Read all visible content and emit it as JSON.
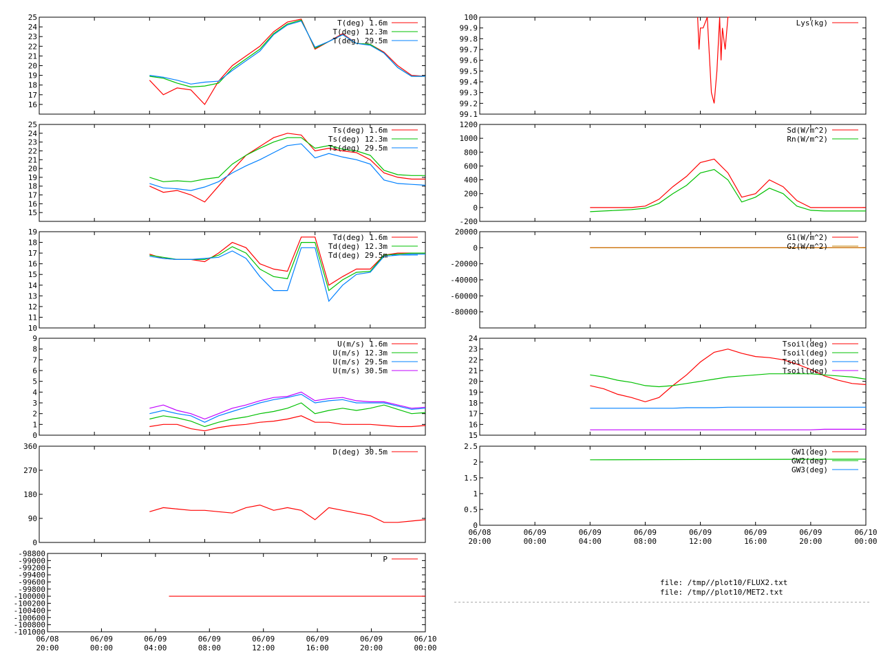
{
  "time_ticks": {
    "dates": [
      "06/08",
      "06/09",
      "06/09",
      "06/09",
      "06/09",
      "06/09",
      "06/09",
      "06/10"
    ],
    "times": [
      "20:00",
      "00:00",
      "04:00",
      "08:00",
      "12:00",
      "16:00",
      "20:00",
      "00:00"
    ]
  },
  "files": [
    "file: /tmp//plot10/FLUX2.txt",
    "file: /tmp//plot10/MET2.txt"
  ],
  "colors": {
    "red": "#ff0000",
    "green": "#00c000",
    "blue": "#0080ff",
    "purple": "#c000ff",
    "darkorange": "#c08000"
  },
  "chart_data": [
    {
      "type": "line",
      "yticks": [
        "16",
        "17",
        "18",
        "19",
        "20",
        "21",
        "22",
        "23",
        "24",
        "25"
      ],
      "ylim": [
        15,
        25
      ],
      "xlim": [
        20,
        48
      ],
      "x": [
        28,
        29,
        30,
        31,
        32,
        33,
        34,
        35,
        36,
        37,
        38,
        39,
        40,
        41,
        42,
        43,
        44,
        45,
        46,
        47,
        48
      ],
      "series": [
        {
          "name": "T(deg)  1.6m",
          "color": "#ff0000",
          "values": [
            18.5,
            17.0,
            17.7,
            17.5,
            16.0,
            18.4,
            20.0,
            21.0,
            22.0,
            23.5,
            24.5,
            24.8,
            21.7,
            22.5,
            23.3,
            22.3,
            22.2,
            21.4,
            20.0,
            19.0,
            18.9
          ]
        },
        {
          "name": "T(deg) 12.3m",
          "color": "#00c000",
          "values": [
            18.9,
            18.7,
            18.2,
            17.8,
            17.9,
            18.2,
            19.7,
            20.7,
            21.7,
            23.3,
            24.3,
            24.7,
            21.8,
            22.5,
            23.2,
            22.3,
            22.2,
            21.3,
            19.8,
            18.9,
            18.9
          ]
        },
        {
          "name": "T(deg) 29.5m",
          "color": "#0080ff",
          "values": [
            19.0,
            18.8,
            18.5,
            18.1,
            18.3,
            18.4,
            19.5,
            20.5,
            21.5,
            23.2,
            24.2,
            24.6,
            21.9,
            22.5,
            23.2,
            22.3,
            22.1,
            21.3,
            19.8,
            18.9,
            18.9
          ]
        }
      ]
    },
    {
      "type": "line",
      "yticks": [
        "15",
        "16",
        "17",
        "18",
        "19",
        "20",
        "21",
        "22",
        "23",
        "24",
        "25"
      ],
      "ylim": [
        14,
        25
      ],
      "xlim": [
        20,
        48
      ],
      "x": [
        28,
        29,
        30,
        31,
        32,
        33,
        34,
        35,
        36,
        37,
        38,
        39,
        40,
        41,
        42,
        43,
        44,
        45,
        46,
        47,
        48
      ],
      "series": [
        {
          "name": "Ts(deg)  1.6m",
          "color": "#ff0000",
          "values": [
            18.0,
            17.3,
            17.5,
            17.0,
            16.2,
            18.0,
            19.8,
            21.5,
            22.5,
            23.5,
            24.0,
            23.8,
            22.0,
            22.3,
            22.0,
            21.8,
            21.0,
            19.5,
            19.0,
            18.8,
            18.8
          ]
        },
        {
          "name": "Ts(deg) 12.3m",
          "color": "#00c000",
          "values": [
            19.0,
            18.5,
            18.6,
            18.5,
            18.8,
            19.0,
            20.5,
            21.5,
            22.3,
            23.0,
            23.5,
            23.5,
            22.3,
            22.6,
            22.2,
            22.0,
            21.5,
            19.8,
            19.3,
            19.2,
            19.2
          ]
        },
        {
          "name": "Ts(deg) 29.5m",
          "color": "#0080ff",
          "values": [
            18.3,
            17.8,
            17.7,
            17.5,
            17.9,
            18.5,
            19.5,
            20.3,
            21.0,
            21.8,
            22.6,
            22.8,
            21.2,
            21.7,
            21.3,
            21.0,
            20.5,
            18.7,
            18.3,
            18.2,
            18.1
          ]
        }
      ]
    },
    {
      "type": "line",
      "yticks": [
        "10",
        "11",
        "12",
        "13",
        "14",
        "15",
        "16",
        "17",
        "18",
        "19"
      ],
      "ylim": [
        10,
        19
      ],
      "xlim": [
        20,
        48
      ],
      "x": [
        28,
        29,
        30,
        31,
        32,
        33,
        34,
        35,
        36,
        37,
        38,
        39,
        40,
        41,
        42,
        43,
        44,
        45,
        46,
        47,
        48
      ],
      "series": [
        {
          "name": "Td(deg)  1.6m",
          "color": "#ff0000",
          "values": [
            16.9,
            16.5,
            16.4,
            16.4,
            16.2,
            17.0,
            18.0,
            17.5,
            16.0,
            15.5,
            15.3,
            18.5,
            18.5,
            14.0,
            14.8,
            15.5,
            15.5,
            16.8,
            17.0,
            17.0,
            17.0
          ]
        },
        {
          "name": "Td(deg) 12.3m",
          "color": "#00c000",
          "values": [
            16.8,
            16.6,
            16.4,
            16.4,
            16.4,
            16.8,
            17.6,
            17.0,
            15.5,
            14.8,
            14.6,
            18.0,
            18.0,
            13.5,
            14.5,
            15.2,
            15.3,
            16.8,
            16.9,
            17.0,
            17.0
          ]
        },
        {
          "name": "Td(deg) 29.5m",
          "color": "#0080ff",
          "values": [
            16.7,
            16.5,
            16.4,
            16.4,
            16.5,
            16.6,
            17.2,
            16.5,
            14.8,
            13.5,
            13.5,
            17.5,
            17.5,
            12.5,
            14.0,
            15.0,
            15.2,
            16.7,
            16.8,
            16.9,
            16.9
          ]
        }
      ]
    },
    {
      "type": "line",
      "yticks": [
        "0",
        "1",
        "2",
        "3",
        "4",
        "5",
        "6",
        "7",
        "8",
        "9"
      ],
      "ylim": [
        0,
        9
      ],
      "xlim": [
        20,
        48
      ],
      "x": [
        28,
        29,
        30,
        31,
        32,
        33,
        34,
        35,
        36,
        37,
        38,
        39,
        40,
        41,
        42,
        43,
        44,
        45,
        46,
        47,
        48
      ],
      "series": [
        {
          "name": "U(m/s)  1.6m",
          "color": "#ff0000",
          "values": [
            0.8,
            1.0,
            1.0,
            0.6,
            0.4,
            0.7,
            0.9,
            1.0,
            1.2,
            1.3,
            1.5,
            1.8,
            1.2,
            1.2,
            1.0,
            1.0,
            1.0,
            0.9,
            0.8,
            0.8,
            0.9
          ]
        },
        {
          "name": "U(m/s) 12.3m",
          "color": "#00c000",
          "values": [
            1.5,
            1.8,
            1.6,
            1.3,
            0.8,
            1.2,
            1.5,
            1.7,
            2.0,
            2.2,
            2.5,
            3.0,
            2.0,
            2.3,
            2.5,
            2.3,
            2.5,
            2.8,
            2.4,
            2.0,
            2.1
          ]
        },
        {
          "name": "U(m/s) 29.5m",
          "color": "#0080ff",
          "values": [
            2.0,
            2.3,
            2.0,
            1.8,
            1.2,
            1.8,
            2.2,
            2.6,
            3.0,
            3.3,
            3.5,
            3.8,
            3.0,
            3.2,
            3.3,
            3.0,
            3.0,
            3.0,
            2.7,
            2.4,
            2.5
          ]
        },
        {
          "name": "U(m/s) 30.5m",
          "color": "#c000ff",
          "values": [
            2.5,
            2.8,
            2.3,
            2.0,
            1.5,
            2.0,
            2.5,
            2.8,
            3.2,
            3.5,
            3.6,
            4.0,
            3.2,
            3.4,
            3.5,
            3.2,
            3.1,
            3.1,
            2.8,
            2.5,
            2.6
          ]
        }
      ]
    },
    {
      "type": "line",
      "yticks": [
        "0",
        "90",
        "180",
        "270",
        "360"
      ],
      "ylim": [
        0,
        360
      ],
      "xlim": [
        20,
        48
      ],
      "x": [
        28,
        29,
        30,
        31,
        32,
        33,
        34,
        35,
        36,
        37,
        38,
        39,
        40,
        41,
        42,
        43,
        44,
        45,
        46,
        47,
        48
      ],
      "series": [
        {
          "name": "D(deg)  30.5m",
          "color": "#ff0000",
          "values": [
            115,
            130,
            125,
            120,
            120,
            115,
            110,
            130,
            140,
            120,
            130,
            120,
            85,
            130,
            120,
            110,
            100,
            75,
            75,
            80,
            85
          ]
        }
      ]
    },
    {
      "type": "line",
      "yticks": [
        "-101000",
        "-100800",
        "-100600",
        "-100400",
        "-100200",
        "-100000",
        "-99800",
        "-99600",
        "-99400",
        "-99200",
        "-99000",
        "-98800"
      ],
      "ylim": [
        -101000,
        -98800
      ],
      "xlim": [
        20,
        48
      ],
      "x": [
        29,
        48
      ],
      "series": [
        {
          "name": "P",
          "color": "#ff0000",
          "values": [
            -100000,
            -100000
          ]
        }
      ]
    },
    {
      "type": "line",
      "yticks": [
        "99.1",
        "99.2",
        "99.3",
        "99.4",
        "99.5",
        "99.6",
        "99.7",
        "99.8",
        "99.9",
        "100"
      ],
      "ylim": [
        99.1,
        100
      ],
      "xlim": [
        20,
        48
      ],
      "x": [
        35.8,
        35.9,
        36.0,
        36.2,
        36.5,
        36.8,
        37.0,
        37.2,
        37.4,
        37.5,
        37.6,
        37.8,
        38.0,
        38.1
      ],
      "series": [
        {
          "name": "Lys(kg)",
          "color": "#ff0000",
          "values": [
            100,
            99.7,
            99.9,
            99.9,
            100,
            99.3,
            99.2,
            99.5,
            100,
            99.6,
            99.9,
            99.7,
            100,
            100
          ]
        }
      ]
    },
    {
      "type": "line",
      "yticks": [
        "-200",
        "0",
        "200",
        "400",
        "600",
        "800",
        "1000",
        "1200"
      ],
      "ylim": [
        -200,
        1200
      ],
      "xlim": [
        20,
        48
      ],
      "x": [
        28,
        29,
        30,
        31,
        32,
        33,
        34,
        35,
        36,
        37,
        38,
        39,
        40,
        41,
        42,
        43,
        44,
        45,
        46,
        47,
        48
      ],
      "series": [
        {
          "name": "Sd(W/m^2)",
          "color": "#ff0000",
          "values": [
            0,
            0,
            0,
            0,
            20,
            120,
            300,
            450,
            650,
            700,
            500,
            150,
            200,
            400,
            300,
            100,
            0,
            0,
            0,
            0,
            0
          ]
        },
        {
          "name": "Rn(W/m^2)",
          "color": "#00c000",
          "values": [
            -60,
            -50,
            -40,
            -30,
            -10,
            60,
            200,
            320,
            500,
            550,
            400,
            80,
            150,
            280,
            200,
            20,
            -40,
            -50,
            -50,
            -50,
            -50
          ]
        }
      ]
    },
    {
      "type": "line",
      "yticks": [
        "-80000",
        "-60000",
        "-40000",
        "-20000",
        "0",
        "20000"
      ],
      "ylim": [
        -100000,
        20000
      ],
      "xlim": [
        20,
        48
      ],
      "x": [
        28,
        48
      ],
      "series": [
        {
          "name": "G1(W/m^2)",
          "color": "#ff0000",
          "values": [
            0,
            0
          ]
        },
        {
          "name": "G2(W/m^2)",
          "color": "#c08000",
          "values": [
            0,
            0
          ]
        }
      ]
    },
    {
      "type": "line",
      "yticks": [
        "15",
        "16",
        "17",
        "18",
        "19",
        "20",
        "21",
        "22",
        "23",
        "24"
      ],
      "ylim": [
        15,
        24
      ],
      "xlim": [
        20,
        48
      ],
      "x": [
        28,
        29,
        30,
        31,
        32,
        33,
        34,
        35,
        36,
        37,
        38,
        39,
        40,
        41,
        42,
        43,
        44,
        45,
        46,
        47,
        48
      ],
      "series": [
        {
          "name": "Tsoil(deg)",
          "color": "#ff0000",
          "values": [
            19.6,
            19.3,
            18.8,
            18.5,
            18.1,
            18.5,
            19.6,
            20.6,
            21.8,
            22.7,
            23.0,
            22.6,
            22.3,
            22.2,
            22.0,
            21.6,
            21.1,
            20.5,
            20.1,
            19.8,
            19.7
          ]
        },
        {
          "name": "Tsoil(deg)",
          "color": "#00c000",
          "values": [
            20.6,
            20.4,
            20.1,
            19.9,
            19.6,
            19.5,
            19.6,
            19.8,
            20.0,
            20.2,
            20.4,
            20.5,
            20.6,
            20.7,
            20.7,
            20.7,
            20.7,
            20.6,
            20.5,
            20.4,
            20.2
          ]
        },
        {
          "name": "Tsoil(deg)",
          "color": "#0080ff",
          "values": [
            17.5,
            17.5,
            17.5,
            17.5,
            17.5,
            17.5,
            17.5,
            17.55,
            17.55,
            17.55,
            17.6,
            17.6,
            17.6,
            17.6,
            17.6,
            17.6,
            17.6,
            17.6,
            17.6,
            17.6,
            17.6
          ]
        },
        {
          "name": "Tsoil(deg)",
          "color": "#c000ff",
          "values": [
            15.5,
            15.5,
            15.5,
            15.5,
            15.5,
            15.5,
            15.5,
            15.5,
            15.5,
            15.5,
            15.5,
            15.5,
            15.5,
            15.5,
            15.5,
            15.5,
            15.5,
            15.55,
            15.55,
            15.55,
            15.55
          ]
        }
      ]
    },
    {
      "type": "line",
      "yticks": [
        "0",
        "0.5",
        "1",
        "1.5",
        "2",
        "2.5"
      ],
      "ylim": [
        0,
        2.5
      ],
      "xlim": [
        20,
        48
      ],
      "x": [
        28,
        48
      ],
      "series": [
        {
          "name": "GW1(deg)",
          "color": "#ff0000",
          "values": [
            null,
            null
          ]
        },
        {
          "name": "GW2(deg)",
          "color": "#00c000",
          "values": [
            2.07,
            2.09
          ]
        },
        {
          "name": "GW3(deg)",
          "color": "#0080ff",
          "values": [
            null,
            null
          ]
        }
      ]
    }
  ]
}
